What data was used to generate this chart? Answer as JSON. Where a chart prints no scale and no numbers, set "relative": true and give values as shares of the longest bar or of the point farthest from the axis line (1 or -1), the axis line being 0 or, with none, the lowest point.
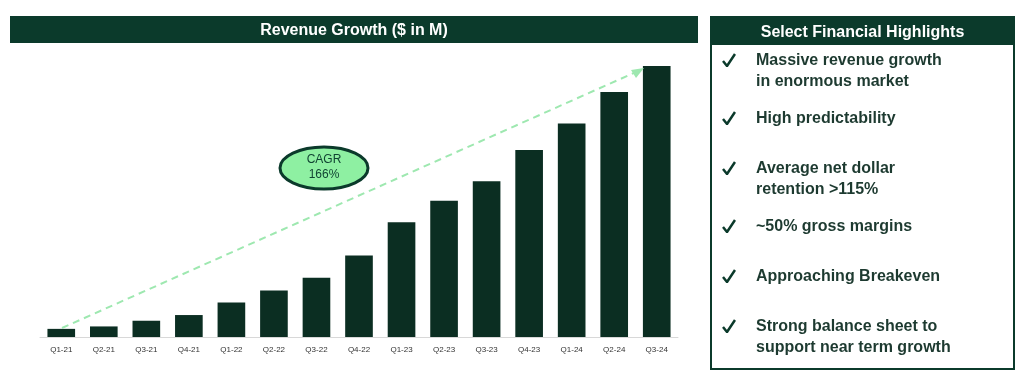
{
  "chart_data": [
    {
      "type": "bar",
      "title": "Revenue Growth ($ in M)",
      "relative": true,
      "color": "#0b2e22",
      "categories": [
        "Q1-21",
        "Q2-21",
        "Q3-21",
        "Q4-21",
        "Q1-22",
        "Q2-22",
        "Q3-22",
        "Q4-22",
        "Q1-23",
        "Q2-23",
        "Q3-23",
        "Q4-23",
        "Q1-24",
        "Q2-24",
        "Q3-24"
      ],
      "values": [
        0.03,
        0.039,
        0.06,
        0.081,
        0.127,
        0.172,
        0.219,
        0.301,
        0.423,
        0.503,
        0.575,
        0.69,
        0.788,
        0.904,
        1
      ],
      "annotations": [
        "CAGR\n166%"
      ]
    },
    {
      "type": "other",
      "title": "Select Financial Highlights",
      "annotations": [
        "Massive revenue growth\nin enormous market",
        "High predictability",
        "Average net dollar\nretention >115%",
        "~50% gross margins",
        "Approaching Breakeven",
        "Strong balance sheet to\nsupport near term growth"
      ]
    }
  ]
}
